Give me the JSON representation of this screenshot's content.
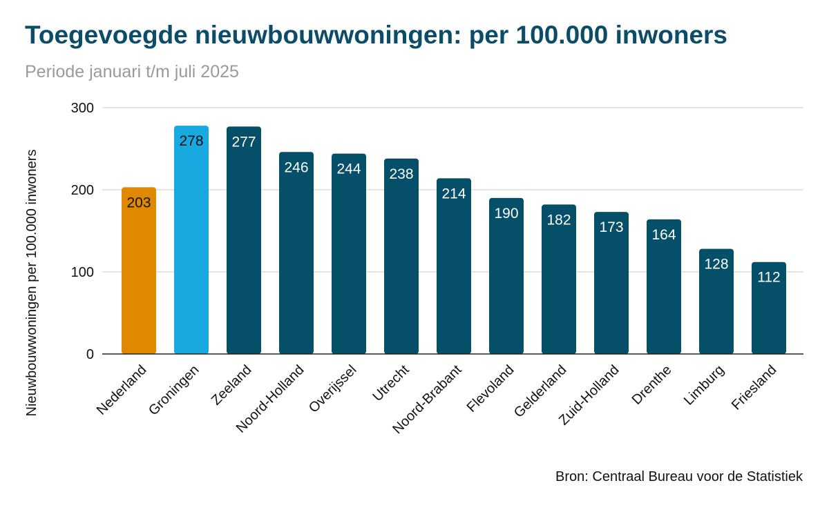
{
  "chart_data": {
    "type": "bar",
    "title": "Toegevoegde nieuwbouwwoningen: per 100.000 inwoners",
    "subtitle": "Periode januari t/m juli 2025",
    "xlabel": "",
    "ylabel": "Nieuwbouwwoningen per 100.000 inwoners",
    "ylim": [
      0,
      300
    ],
    "yticks": [
      0,
      100,
      200,
      300
    ],
    "grid": true,
    "categories": [
      "Nederland",
      "Groningen",
      "Zeeland",
      "Noord-Holland",
      "Overijssel",
      "Utrecht",
      "Noord-Brabant",
      "Flevoland",
      "Gelderland",
      "Zuid-Holland",
      "Drenthe",
      "Limburg",
      "Friesland"
    ],
    "values": [
      203,
      278,
      277,
      246,
      244,
      238,
      214,
      190,
      182,
      173,
      164,
      128,
      112
    ],
    "colors": [
      "#e08800",
      "#18a9e1",
      "#054f69",
      "#054f69",
      "#054f69",
      "#054f69",
      "#054f69",
      "#054f69",
      "#054f69",
      "#054f69",
      "#054f69",
      "#054f69",
      "#054f69"
    ],
    "label_colors": [
      "#111111",
      "#111111",
      "#ffffff",
      "#ffffff",
      "#ffffff",
      "#ffffff",
      "#ffffff",
      "#ffffff",
      "#ffffff",
      "#ffffff",
      "#ffffff",
      "#ffffff",
      "#ffffff"
    ],
    "source": "Bron: Centraal Bureau voor de Statistiek"
  }
}
